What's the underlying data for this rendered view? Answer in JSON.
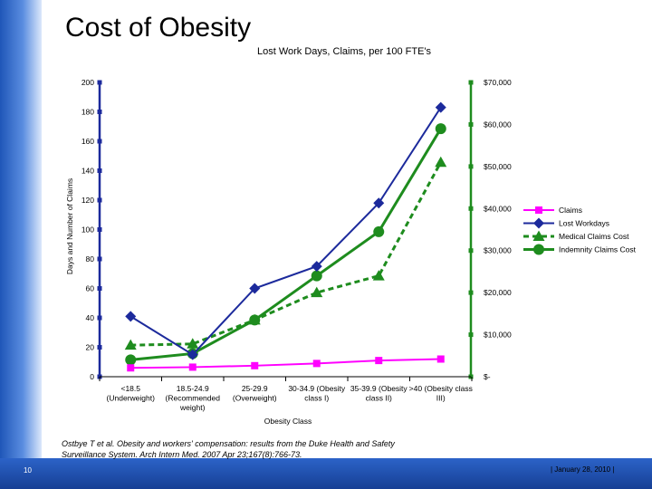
{
  "slide": {
    "title": "Cost of Obesity",
    "number": "10",
    "citation_line1": "Ostbye T et al. Obesity and workers' compensation: results from the Duke Health and Safety",
    "citation_line2": "Surveillance System. Arch Intern Med. 2007 Apr 23;167(8):766-73.",
    "footer_date": "| January 28, 2010 |",
    "colors": {
      "left_bar": "#2c63c8",
      "bottom_bar": "#1f4ca8"
    }
  },
  "chart_data": {
    "type": "line",
    "title": "Lost Work Days, Claims, per 100 FTE's",
    "xlabel": "Obesity Class",
    "ylabel": "Days and Number of Claims",
    "categories": [
      "<18.5 (Underweight)",
      "18.5-24.9 (Recommended weight)",
      "25-29.9 (Overweight)",
      "30-34.9 (Obesity class I)",
      "35-39.9 (Obesity class II)",
      ">40 (Obesity class III)"
    ],
    "category_lines": [
      [
        "<18.5",
        "(Underweight)"
      ],
      [
        "18.5-24.9",
        "(Recommended",
        "weight)"
      ],
      [
        "25-29.9",
        "(Overweight)"
      ],
      [
        "30-34.9 (Obesity",
        "class I)"
      ],
      [
        "35-39.9 (Obesity",
        "class II)"
      ],
      [
        ">40 (Obesity class",
        "III)"
      ]
    ],
    "y_left": {
      "ylim": [
        0,
        200
      ],
      "ticks": [
        "0",
        "20",
        "40",
        "60",
        "80",
        "100",
        "120",
        "140",
        "160",
        "180",
        "200"
      ]
    },
    "y_right": {
      "ylim": [
        0,
        70000
      ],
      "ticks": [
        "$-",
        "$10,000",
        "$20,000",
        "$30,000",
        "$40,000",
        "$50,000",
        "$60,000",
        "$70,000"
      ]
    },
    "series": [
      {
        "name": "Claims",
        "axis": "left",
        "color": "#ff00ff",
        "marker": "square",
        "dash": false,
        "values": [
          6,
          6.5,
          7.5,
          9,
          11,
          12
        ]
      },
      {
        "name": "Lost Workdays",
        "axis": "left",
        "color": "#1c2a9c",
        "marker": "diamond",
        "dash": false,
        "values": [
          41,
          15,
          60,
          75,
          118,
          183
        ]
      },
      {
        "name": "Medical Claims Cost",
        "axis": "right",
        "color": "#1e8c1e",
        "marker": "triangle",
        "dash": true,
        "values": [
          7500,
          7800,
          13500,
          20000,
          24000,
          51000
        ]
      },
      {
        "name": "Indemnity Claims Cost",
        "axis": "right",
        "color": "#1e8c1e",
        "marker": "circle",
        "dash": false,
        "values": [
          4000,
          5500,
          13500,
          24000,
          34500,
          59000
        ]
      }
    ],
    "legend": "right"
  }
}
